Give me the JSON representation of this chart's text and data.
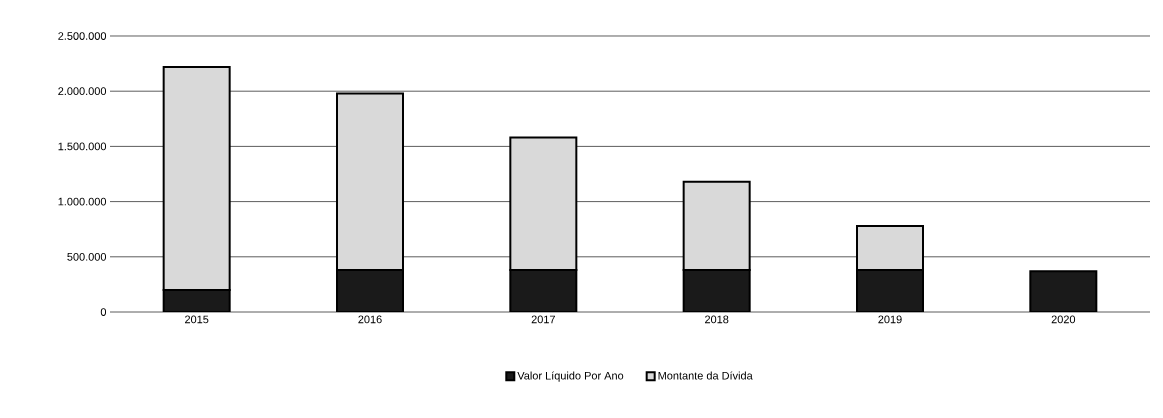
{
  "chart_data": {
    "type": "bar",
    "stacked": true,
    "categories": [
      "2015",
      "2016",
      "2017",
      "2018",
      "2019",
      "2020"
    ],
    "series": [
      {
        "name": "Valor Líquido Por Ano",
        "color": "#1a1a1a",
        "values": [
          200000,
          380000,
          380000,
          380000,
          380000,
          370000
        ]
      },
      {
        "name": "Montante da Dívida",
        "color": "#d9d9d9",
        "values": [
          2020000,
          1600000,
          1200000,
          800000,
          400000,
          0
        ]
      }
    ],
    "ylim": [
      0,
      2500000
    ],
    "yticks": [
      {
        "value": 0,
        "label": "0"
      },
      {
        "value": 500000,
        "label": "500.000"
      },
      {
        "value": 1000000,
        "label": "1.000.000"
      },
      {
        "value": 1500000,
        "label": "1.500.000"
      },
      {
        "value": 2000000,
        "label": "2.000.000"
      },
      {
        "value": 2500000,
        "label": "2.500.000"
      }
    ],
    "grid": "y",
    "legend": "bottom"
  }
}
